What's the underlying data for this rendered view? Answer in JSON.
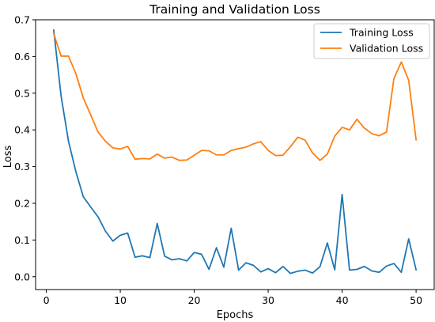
{
  "chart_data": {
    "type": "line",
    "title": "Training and Validation Loss",
    "xlabel": "Epochs",
    "ylabel": "Loss",
    "xlim": [
      -1.45,
      52.45
    ],
    "ylim": [
      -0.035,
      0.7
    ],
    "xticks": [
      0,
      10,
      20,
      30,
      40,
      50
    ],
    "yticks": [
      0.0,
      0.1,
      0.2,
      0.3,
      0.4,
      0.5,
      0.6,
      0.7
    ],
    "ytick_labels": [
      "0.0",
      "0.1",
      "0.2",
      "0.3",
      "0.4",
      "0.5",
      "0.6",
      "0.7"
    ],
    "grid": false,
    "legend_position": "top-right",
    "x": [
      1,
      2,
      3,
      4,
      5,
      6,
      7,
      8,
      9,
      10,
      11,
      12,
      13,
      14,
      15,
      16,
      17,
      18,
      19,
      20,
      21,
      22,
      23,
      24,
      25,
      26,
      27,
      28,
      29,
      30,
      31,
      32,
      33,
      34,
      35,
      36,
      37,
      38,
      39,
      40,
      41,
      42,
      43,
      44,
      45,
      46,
      47,
      48,
      49,
      50
    ],
    "series": [
      {
        "name": "Training Loss",
        "color": "#1f77b4",
        "values": [
          0.672,
          0.492,
          0.369,
          0.286,
          0.218,
          0.19,
          0.163,
          0.124,
          0.097,
          0.113,
          0.119,
          0.053,
          0.057,
          0.052,
          0.145,
          0.056,
          0.046,
          0.049,
          0.043,
          0.066,
          0.061,
          0.02,
          0.079,
          0.026,
          0.132,
          0.018,
          0.038,
          0.031,
          0.013,
          0.022,
          0.011,
          0.028,
          0.009,
          0.015,
          0.018,
          0.01,
          0.027,
          0.092,
          0.019,
          0.224,
          0.018,
          0.02,
          0.028,
          0.016,
          0.012,
          0.029,
          0.036,
          0.012,
          0.103,
          0.019
        ]
      },
      {
        "name": "Validation Loss",
        "color": "#ff7f0e",
        "values": [
          0.662,
          0.601,
          0.601,
          0.553,
          0.487,
          0.441,
          0.394,
          0.369,
          0.351,
          0.348,
          0.355,
          0.32,
          0.322,
          0.321,
          0.334,
          0.323,
          0.326,
          0.317,
          0.318,
          0.331,
          0.344,
          0.343,
          0.332,
          0.332,
          0.344,
          0.349,
          0.353,
          0.362,
          0.368,
          0.344,
          0.33,
          0.331,
          0.354,
          0.38,
          0.372,
          0.337,
          0.317,
          0.334,
          0.383,
          0.407,
          0.4,
          0.429,
          0.405,
          0.39,
          0.384,
          0.394,
          0.54,
          0.585,
          0.535,
          0.373
        ]
      }
    ]
  }
}
